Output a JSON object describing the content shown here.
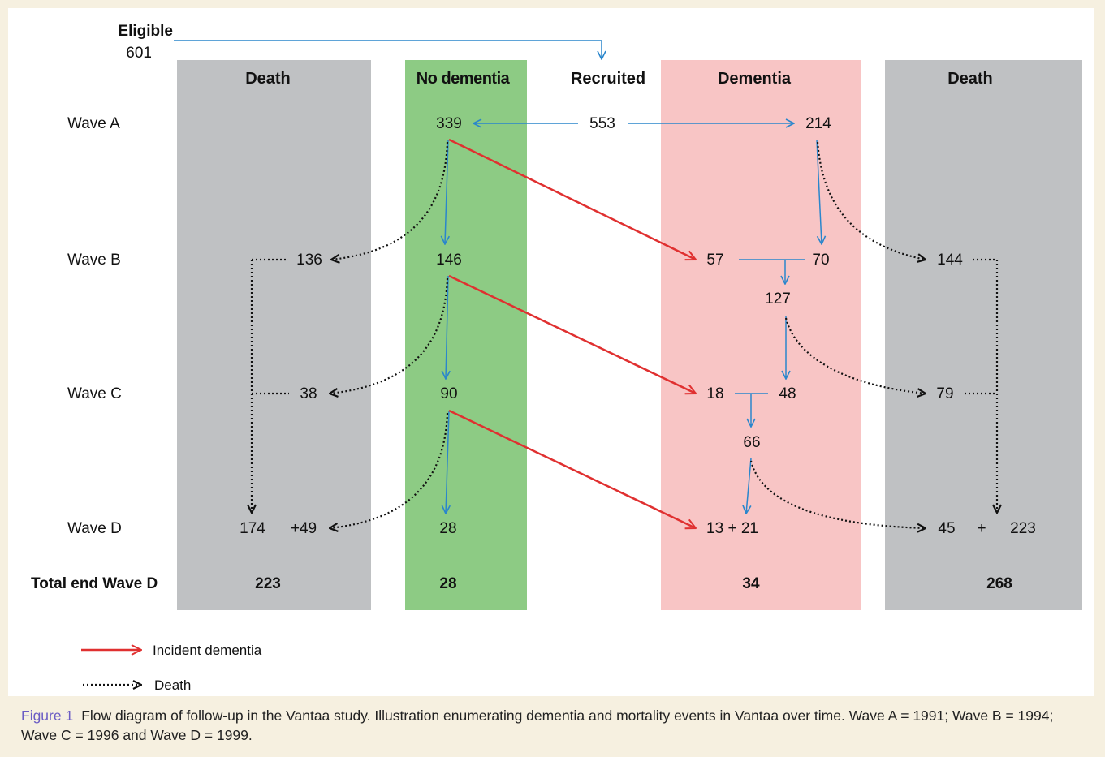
{
  "columns": {
    "death_left": "Death",
    "no_dementia": "No dementia",
    "recruited": "Recruited",
    "dementia": "Dementia",
    "death_right": "Death"
  },
  "colors": {
    "death": "#bfc1c3",
    "no_dementia": "#8dcb84",
    "dementia": "#f8c5c5",
    "flow": "#2a86cc",
    "incident": "#e03030",
    "caption_bg": "#f6f0e0"
  },
  "eligible": {
    "label": "Eligible",
    "value": "601"
  },
  "waves": {
    "a": "Wave A",
    "b": "Wave B",
    "c": "Wave C",
    "d": "Wave D",
    "total": "Total end Wave D"
  },
  "counts": {
    "a_no_dementia": "339",
    "a_recruited": "553",
    "a_dementia": "214",
    "b_death_left": "136",
    "b_no_dementia": "146",
    "b_incident": "57",
    "b_prevalent": "70",
    "b_dementia_total": "127",
    "b_death_right": "144",
    "c_death_left": "38",
    "c_no_dementia": "90",
    "c_incident": "18",
    "c_prevalent": "48",
    "c_dementia_total": "66",
    "c_death_right": "79",
    "d_death_left_cum": "174",
    "d_death_left_new": "+49",
    "d_no_dementia": "28",
    "d_dementia": "13 + 21",
    "d_death_right_new": "45",
    "d_plus": "+",
    "d_death_right_cum": "223",
    "total_death_left": "223",
    "total_no_dementia": "28",
    "total_dementia": "34",
    "total_death_right": "268"
  },
  "legend": {
    "incident": "Incident dementia",
    "death": "Death"
  },
  "caption": {
    "label": "Figure 1",
    "text": "Flow diagram of follow-up in the Vantaa study. Illustration enumerating dementia and mortality events in Vantaa over time. Wave A = 1991; Wave B = 1994; Wave C = 1996 and Wave D = 1999."
  }
}
